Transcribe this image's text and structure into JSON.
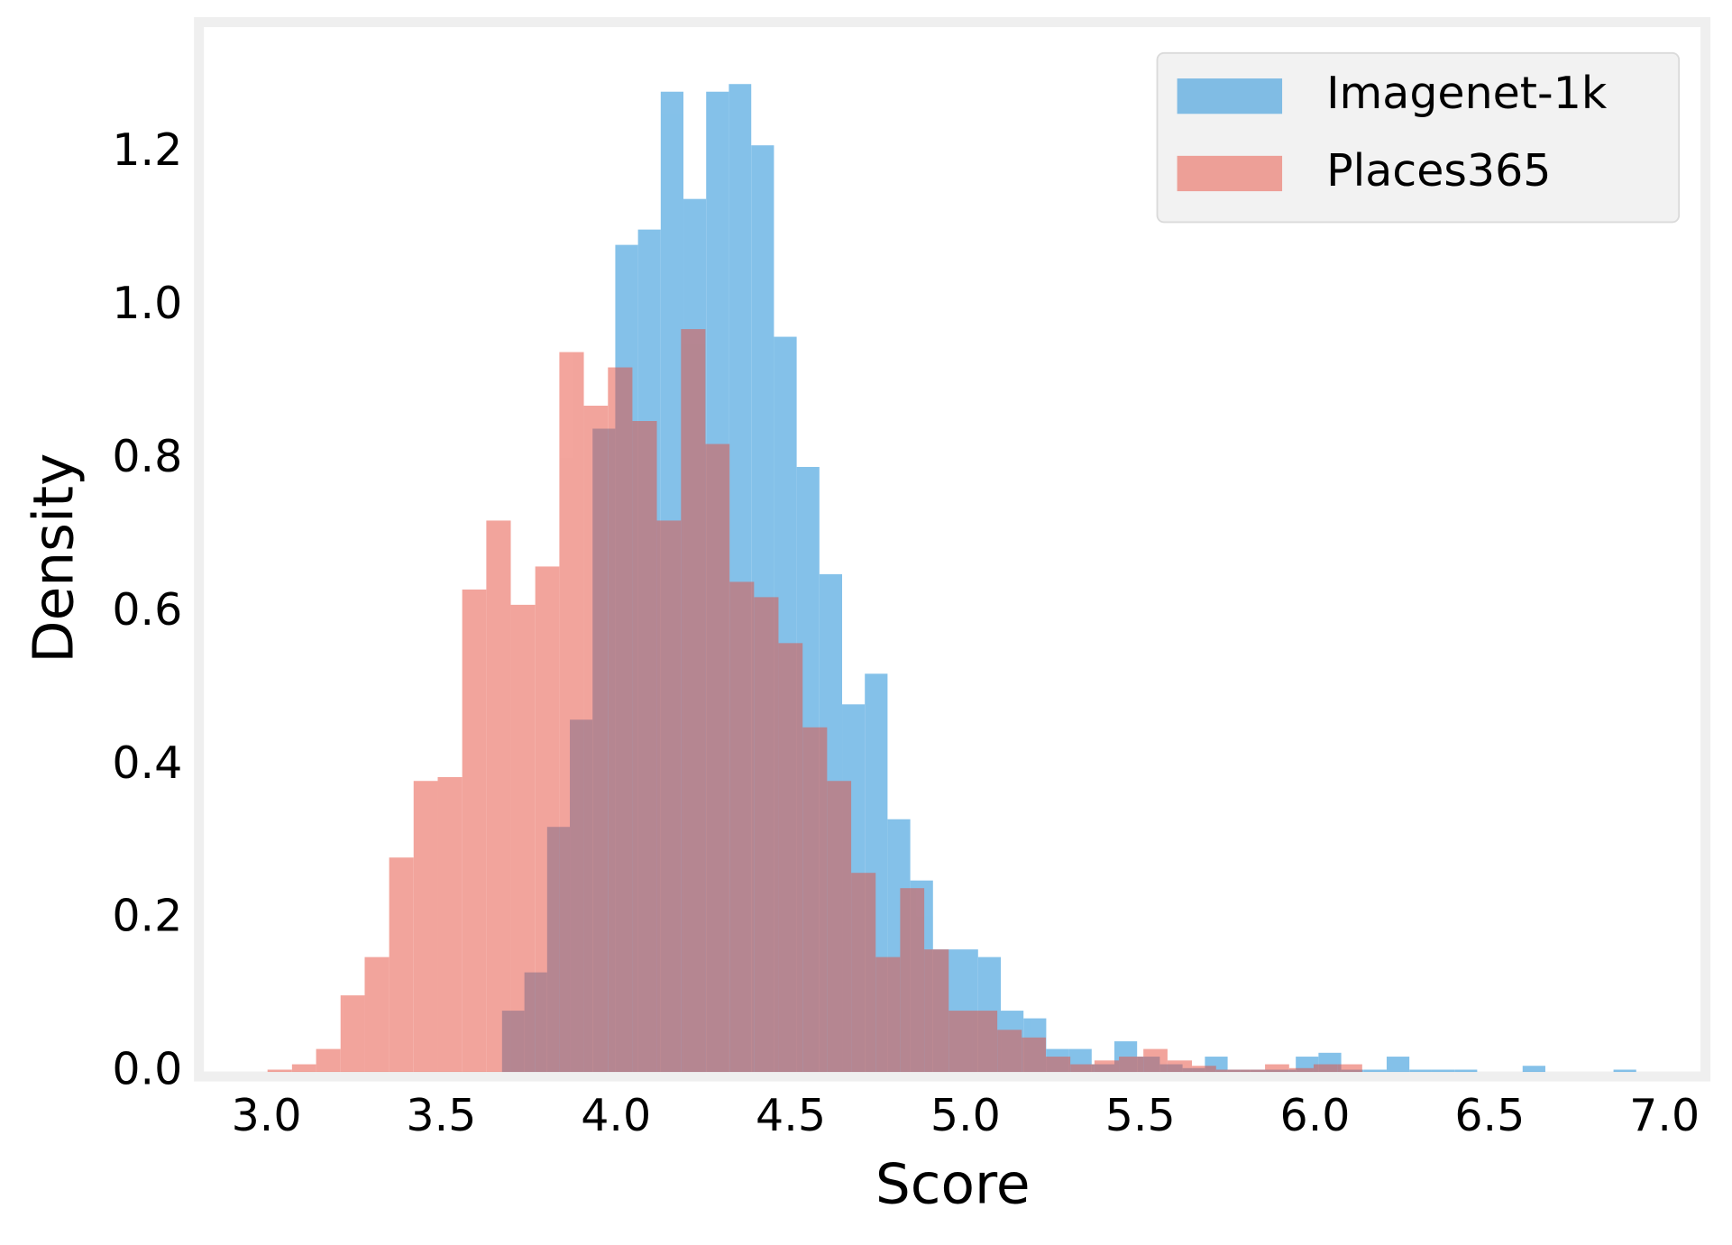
{
  "chart_data": {
    "type": "histogram",
    "xlabel": "Score",
    "ylabel": "Density",
    "xlim": [
      2.81,
      7.114
    ],
    "ylim": [
      -0.003,
      1.368
    ],
    "xticks": [
      {
        "value": 3,
        "label": "3.0"
      },
      {
        "value": 3.5,
        "label": "3.5"
      },
      {
        "value": 4,
        "label": "4.0"
      },
      {
        "value": 4.5,
        "label": "4.5"
      },
      {
        "value": 5,
        "label": "5.0"
      },
      {
        "value": 5.5,
        "label": "5.5"
      },
      {
        "value": 6,
        "label": "6.0"
      },
      {
        "value": 6.5,
        "label": "6.5"
      },
      {
        "value": 7,
        "label": "7.0"
      }
    ],
    "yticks": [
      {
        "value": 0,
        "label": "0.0"
      },
      {
        "value": 0.2,
        "label": "0.2"
      },
      {
        "value": 0.4,
        "label": "0.4"
      },
      {
        "value": 0.6,
        "label": "0.6"
      },
      {
        "value": 0.8,
        "label": "0.8"
      },
      {
        "value": 1,
        "label": "1.0"
      },
      {
        "value": 1.2,
        "label": "1.2"
      }
    ],
    "grid": false,
    "legend": "upper right",
    "series": [
      {
        "name": "Imagenet-1k",
        "color": "#3498db",
        "alpha": 0.6,
        "bins": [
          3.674,
          3.738,
          3.803,
          3.868,
          3.933,
          3.998,
          4.063,
          4.128,
          4.193,
          4.258,
          4.323,
          4.387,
          4.452,
          4.517,
          4.582,
          4.647,
          4.712,
          4.777,
          4.842,
          4.907,
          4.972,
          5.036,
          5.101,
          5.166,
          5.231,
          5.296,
          5.361,
          5.426,
          5.491,
          5.556,
          5.621,
          5.685,
          5.75,
          5.815,
          5.88,
          5.945,
          6.01,
          6.075,
          6.14,
          6.205,
          6.27,
          6.334,
          6.399,
          6.464,
          6.529,
          6.594,
          6.659,
          6.724,
          6.789,
          6.854,
          6.919
        ],
        "values": [
          0.08,
          0.13,
          0.32,
          0.46,
          0.84,
          1.08,
          1.1,
          1.28,
          1.14,
          1.28,
          1.29,
          1.21,
          0.96,
          0.79,
          0.65,
          0.48,
          0.52,
          0.33,
          0.25,
          0.16,
          0.16,
          0.15,
          0.08,
          0.07,
          0.03,
          0.03,
          0.01,
          0.04,
          0.02,
          0.01,
          0.005,
          0.02,
          0.003,
          0.003,
          0.003,
          0.02,
          0.025,
          0.003,
          0.003,
          0.02,
          0.003,
          0.003,
          0.003,
          0,
          0,
          0.008,
          0,
          0,
          0,
          0.003
        ]
      },
      {
        "name": "Places365",
        "color": "#e74c3c",
        "alpha": 0.5,
        "bins": [
          3.003,
          3.073,
          3.142,
          3.212,
          3.281,
          3.351,
          3.421,
          3.49,
          3.56,
          3.629,
          3.699,
          3.769,
          3.838,
          3.908,
          3.977,
          4.047,
          4.117,
          4.186,
          4.256,
          4.325,
          4.395,
          4.465,
          4.534,
          4.604,
          4.673,
          4.743,
          4.813,
          4.882,
          4.952,
          5.021,
          5.091,
          5.161,
          5.23,
          5.3,
          5.369,
          5.439,
          5.509,
          5.578,
          5.648,
          5.717,
          5.787,
          5.857,
          5.926,
          5.996,
          6.065,
          6.135
        ],
        "values": [
          0.003,
          0.01,
          0.03,
          0.1,
          0.15,
          0.28,
          0.38,
          0.385,
          0.63,
          0.72,
          0.61,
          0.66,
          0.94,
          0.87,
          0.92,
          0.85,
          0.72,
          0.97,
          0.82,
          0.64,
          0.62,
          0.56,
          0.45,
          0.38,
          0.26,
          0.15,
          0.24,
          0.16,
          0.08,
          0.08,
          0.055,
          0.045,
          0.02,
          0.01,
          0.015,
          0.02,
          0.03,
          0.015,
          0.008,
          0.003,
          0.003,
          0.01,
          0.005,
          0.01,
          0.01
        ]
      }
    ]
  }
}
